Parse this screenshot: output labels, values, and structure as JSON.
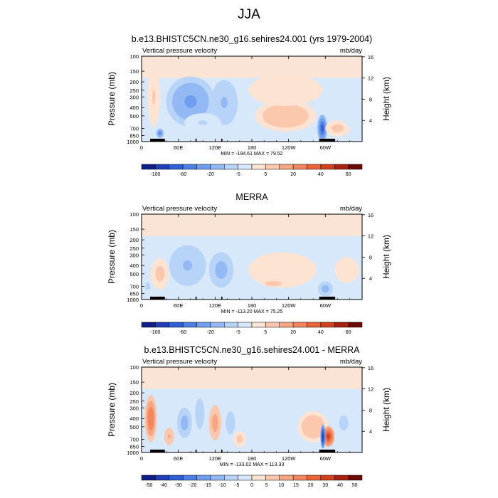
{
  "figure_title": "JJA",
  "chart_data": [
    {
      "type": "heatmap",
      "title": "b.e13.BHISTC5CN.ne30_g16.sehires24.001 (yrs 1979-2004)",
      "left_string": "Vertical pressure velocity",
      "right_string": "mb/day",
      "ylabel": "Pressure (mb)",
      "y2label": "Height (km)",
      "x_ticks": [
        "0",
        "60E",
        "120E",
        "180",
        "120W",
        "60W"
      ],
      "y_ticks": [
        "100",
        "150",
        "200",
        "250",
        "300",
        "400",
        "500",
        "700",
        "850",
        "1000"
      ],
      "y2_ticks": [
        "16",
        "12",
        "8",
        "4"
      ],
      "minmax": "MIN = -194.61   MAX = 79.52",
      "colorbar_labels": [
        "-100",
        "-60",
        "-20",
        "-5",
        "5",
        "20",
        "40",
        "60"
      ],
      "colors": [
        "#0f1e8a",
        "#1f3fb8",
        "#2f5fd6",
        "#4d7fe6",
        "#6f9ef0",
        "#93b9f5",
        "#b8d3f8",
        "#d8e8fb",
        "#fde3d2",
        "#fbc7ad",
        "#f7a582",
        "#f3865c",
        "#ea6437",
        "#d3401d",
        "#a82110",
        "#6e0a05"
      ],
      "blobs": [
        {
          "lon": 80,
          "p": 340,
          "w": 40,
          "h": 400,
          "v": -45
        },
        {
          "lon": 135,
          "p": 350,
          "w": 22,
          "h": 380,
          "v": -30
        },
        {
          "lon": 100,
          "p": 600,
          "w": 30,
          "h": 300,
          "v": -15
        },
        {
          "lon": 235,
          "p": 500,
          "w": 50,
          "h": 400,
          "v": 25
        },
        {
          "lon": 235,
          "p": 250,
          "w": 60,
          "h": 200,
          "v": 8
        },
        {
          "lon": 20,
          "p": 300,
          "w": 10,
          "h": 400,
          "v": 15
        },
        {
          "lon": 30,
          "p": 800,
          "w": 6,
          "h": 200,
          "v": -60
        },
        {
          "lon": 295,
          "p": 700,
          "w": 8,
          "h": 500,
          "v": -70
        },
        {
          "lon": 320,
          "p": 700,
          "w": 20,
          "h": 300,
          "v": 20
        },
        {
          "lon": 345,
          "p": 400,
          "w": 20,
          "h": 400,
          "v": -6
        }
      ]
    },
    {
      "type": "heatmap",
      "title": "MERRA",
      "left_string": "Vertical pressure velocity",
      "right_string": "mb/day",
      "ylabel": "Pressure (mb)",
      "y2label": "Height (km)",
      "x_ticks": [
        "0",
        "60E",
        "120E",
        "180",
        "120W",
        "60W"
      ],
      "y_ticks": [
        "100",
        "150",
        "200",
        "250",
        "300",
        "400",
        "500",
        "700",
        "850",
        "1000"
      ],
      "y2_ticks": [
        "16",
        "12",
        "8",
        "4"
      ],
      "minmax": "MIN = -113.20   MAX = 75.25",
      "colorbar_labels": [
        "-100",
        "-60",
        "-20",
        "-5",
        "5",
        "20",
        "40",
        "60"
      ],
      "colors": [
        "#0f1e8a",
        "#1f3fb8",
        "#2f5fd6",
        "#4d7fe6",
        "#6f9ef0",
        "#93b9f5",
        "#b8d3f8",
        "#d8e8fb",
        "#fde3d2",
        "#fbc7ad",
        "#f7a582",
        "#f3865c",
        "#ea6437",
        "#d3401d",
        "#a82110",
        "#6e0a05"
      ],
      "blobs": [
        {
          "lon": 75,
          "p": 400,
          "w": 30,
          "h": 400,
          "v": -30
        },
        {
          "lon": 130,
          "p": 450,
          "w": 20,
          "h": 400,
          "v": -35
        },
        {
          "lon": 30,
          "p": 500,
          "w": 15,
          "h": 400,
          "v": 18
        },
        {
          "lon": 230,
          "p": 450,
          "w": 55,
          "h": 400,
          "v": 12
        },
        {
          "lon": 215,
          "p": 650,
          "w": 18,
          "h": 120,
          "v": 22
        },
        {
          "lon": 300,
          "p": 750,
          "w": 12,
          "h": 300,
          "v": -40
        },
        {
          "lon": 10,
          "p": 700,
          "w": 8,
          "h": 300,
          "v": -20
        },
        {
          "lon": 180,
          "p": 800,
          "w": 15,
          "h": 200,
          "v": -6
        },
        {
          "lon": 335,
          "p": 450,
          "w": 20,
          "h": 300,
          "v": 6
        }
      ]
    },
    {
      "type": "heatmap",
      "title": "b.e13.BHISTC5CN.ne30_g16.sehires24.001 - MERRA",
      "left_string": "Vertical pressure velocity",
      "right_string": "mb/day",
      "ylabel": "Pressure (mb)",
      "y2label": "Height (km)",
      "x_ticks": [
        "0",
        "60E",
        "120E",
        "180",
        "120W",
        "60W"
      ],
      "y_ticks": [
        "100",
        "150",
        "200",
        "250",
        "300",
        "400",
        "500",
        "700",
        "850",
        "1000"
      ],
      "y2_ticks": [
        "16",
        "12",
        "8",
        "4"
      ],
      "minmax": "MIN = -133.02   MAX = 113.33",
      "colorbar_labels": [
        "-50",
        "-40",
        "-30",
        "-20",
        "-15",
        "-10",
        "-5",
        "0",
        "5",
        "10",
        "15",
        "20",
        "30",
        "40",
        "50"
      ],
      "colors": [
        "#0f1e8a",
        "#1f3fb8",
        "#2f5fd6",
        "#4d7fe6",
        "#6f9ef0",
        "#93b9f5",
        "#b8d3f8",
        "#d8e8fb",
        "#fde3d2",
        "#fbc7ad",
        "#f7a582",
        "#f3865c",
        "#ea6437",
        "#d3401d",
        "#a82110",
        "#6e0a05"
      ],
      "blobs": [
        {
          "lon": 15,
          "p": 400,
          "w": 10,
          "h": 450,
          "v": 25
        },
        {
          "lon": 45,
          "p": 650,
          "w": 8,
          "h": 300,
          "v": 15
        },
        {
          "lon": 70,
          "p": 450,
          "w": 12,
          "h": 350,
          "v": -18
        },
        {
          "lon": 95,
          "p": 350,
          "w": 10,
          "h": 350,
          "v": -12
        },
        {
          "lon": 120,
          "p": 450,
          "w": 10,
          "h": 400,
          "v": 18
        },
        {
          "lon": 145,
          "p": 450,
          "w": 10,
          "h": 350,
          "v": -12
        },
        {
          "lon": 160,
          "p": 700,
          "w": 10,
          "h": 300,
          "v": 10
        },
        {
          "lon": 280,
          "p": 500,
          "w": 25,
          "h": 400,
          "v": 12
        },
        {
          "lon": 305,
          "p": 650,
          "w": 10,
          "h": 350,
          "v": 35
        },
        {
          "lon": 296,
          "p": 650,
          "w": 4,
          "h": 400,
          "v": -45
        },
        {
          "lon": 330,
          "p": 450,
          "w": 15,
          "h": 350,
          "v": -10
        },
        {
          "lon": 205,
          "p": 450,
          "w": 20,
          "h": 300,
          "v": -6
        }
      ]
    }
  ]
}
